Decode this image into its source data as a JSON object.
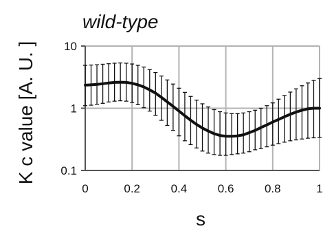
{
  "chart_data": {
    "type": "line",
    "title": "wild-type",
    "xlabel": "s",
    "ylabel": "K c value [A. U. ]",
    "yscale": "log",
    "xlim": [
      0,
      1
    ],
    "ylim": [
      0.1,
      10
    ],
    "x_ticks": [
      "0",
      "0.2",
      "0.4",
      "0.6",
      "0.8",
      "1"
    ],
    "y_ticks": [
      "0.1",
      "1",
      "10"
    ],
    "grid": true,
    "line_color": "#111111",
    "grid_color": "#b3b3b3",
    "series": [
      {
        "x": [
          0,
          0.025,
          0.05,
          0.075,
          0.1,
          0.125,
          0.15,
          0.175,
          0.2,
          0.225,
          0.25,
          0.275,
          0.3,
          0.325,
          0.35,
          0.375,
          0.4,
          0.425,
          0.45,
          0.475,
          0.5,
          0.525,
          0.55,
          0.575,
          0.6,
          0.625,
          0.65,
          0.675,
          0.7,
          0.725,
          0.75,
          0.775,
          0.8,
          0.825,
          0.85,
          0.875,
          0.9,
          0.925,
          0.95,
          0.975,
          1
        ],
        "y": [
          2.35,
          2.38,
          2.42,
          2.48,
          2.55,
          2.6,
          2.62,
          2.6,
          2.52,
          2.38,
          2.2,
          1.98,
          1.75,
          1.5,
          1.27,
          1.07,
          0.9,
          0.76,
          0.64,
          0.55,
          0.48,
          0.43,
          0.39,
          0.365,
          0.355,
          0.355,
          0.36,
          0.375,
          0.405,
          0.44,
          0.49,
          0.54,
          0.6,
          0.66,
          0.73,
          0.8,
          0.87,
          0.93,
          0.98,
          1.0,
          1.0
        ],
        "y_low": [
          1.1,
          1.12,
          1.16,
          1.2,
          1.26,
          1.3,
          1.32,
          1.3,
          1.24,
          1.14,
          1.02,
          0.9,
          0.77,
          0.64,
          0.53,
          0.44,
          0.36,
          0.3,
          0.26,
          0.23,
          0.205,
          0.19,
          0.18,
          0.175,
          0.175,
          0.18,
          0.185,
          0.19,
          0.2,
          0.215,
          0.225,
          0.24,
          0.255,
          0.27,
          0.285,
          0.3,
          0.31,
          0.32,
          0.33,
          0.335,
          0.34
        ],
        "y_high": [
          4.9,
          4.95,
          5.0,
          5.1,
          5.2,
          5.3,
          5.35,
          5.3,
          5.15,
          4.9,
          4.6,
          4.2,
          3.75,
          3.3,
          2.85,
          2.45,
          2.1,
          1.8,
          1.55,
          1.35,
          1.18,
          1.05,
          0.95,
          0.88,
          0.84,
          0.82,
          0.82,
          0.84,
          0.88,
          0.93,
          1.0,
          1.1,
          1.22,
          1.4,
          1.6,
          1.82,
          2.05,
          2.3,
          2.55,
          2.8,
          3.0
        ]
      }
    ]
  }
}
